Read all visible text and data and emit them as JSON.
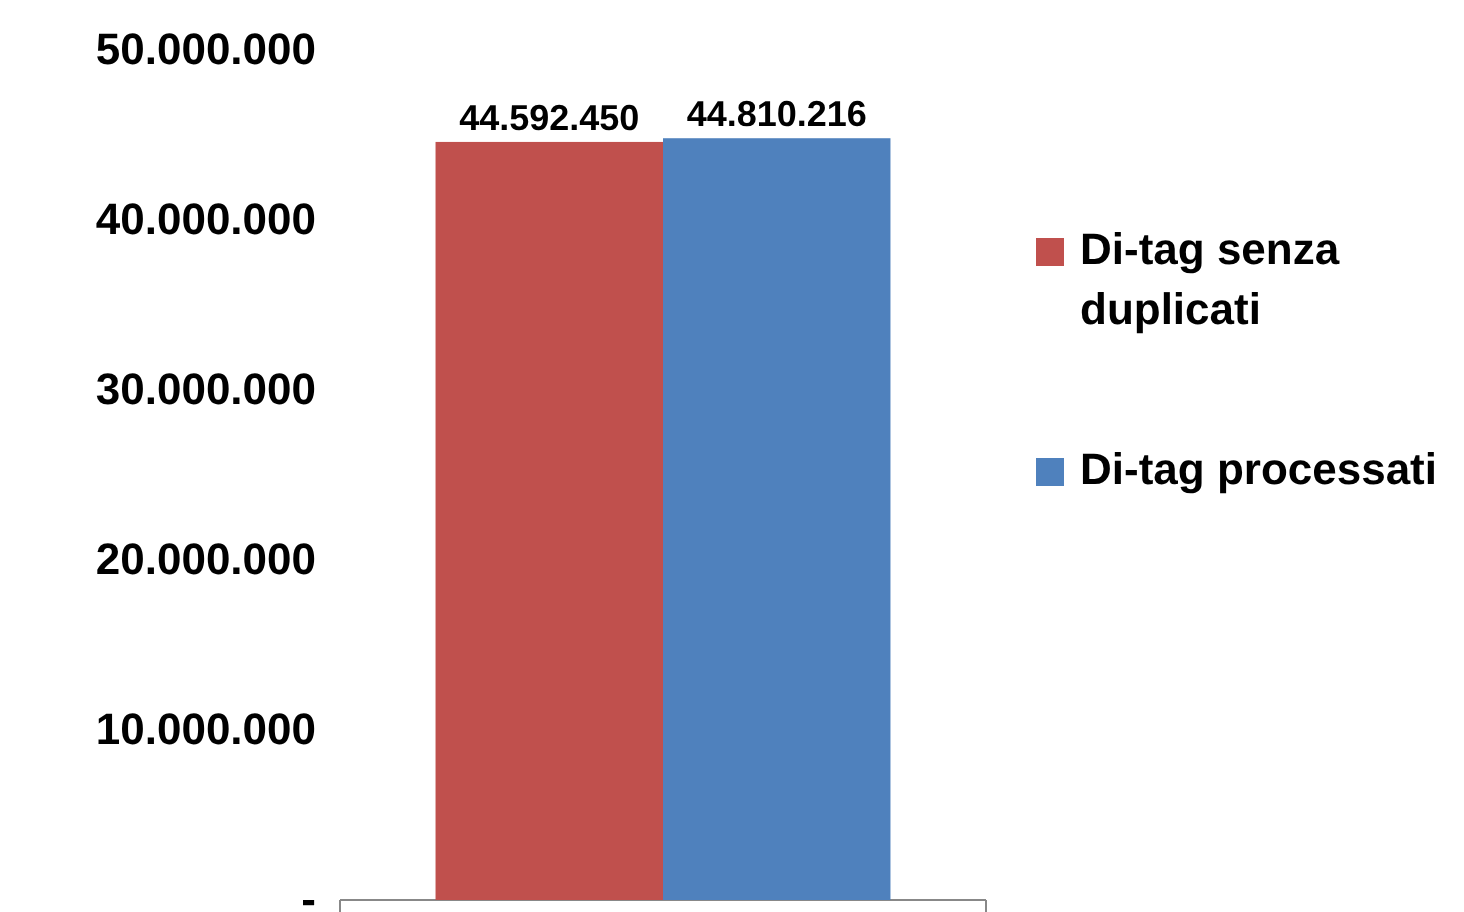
{
  "chart_data": {
    "type": "bar",
    "categories": [
      null
    ],
    "series": [
      {
        "name": "Di-tag senza duplicati",
        "color": "#c0504d",
        "values": [
          44592450
        ],
        "value_labels": [
          "44.592.450"
        ]
      },
      {
        "name": "Di-tag processati",
        "color": "#4f81bd",
        "values": [
          44810216
        ],
        "value_labels": [
          "44.810.216"
        ]
      }
    ],
    "ylim": [
      0,
      50000000
    ],
    "yticks": [
      {
        "value": 0,
        "label": "-"
      },
      {
        "value": 10000000,
        "label": "10.000.000"
      },
      {
        "value": 20000000,
        "label": "20.000.000"
      },
      {
        "value": 30000000,
        "label": "30.000.000"
      },
      {
        "value": 40000000,
        "label": "40.000.000"
      },
      {
        "value": 50000000,
        "label": "50.000.000"
      }
    ],
    "grid": false,
    "legend": "right"
  }
}
